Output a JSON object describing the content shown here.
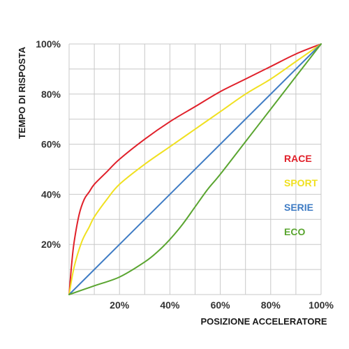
{
  "chart_data": {
    "type": "line",
    "title": "",
    "xlabel": "POSIZIONE ACCELERATORE",
    "ylabel": "TEMPO DI RISPOSTA",
    "xlim": [
      0,
      100
    ],
    "ylim": [
      0,
      100
    ],
    "x_ticks": [
      "20%",
      "40%",
      "60%",
      "80%",
      "100%"
    ],
    "y_ticks": [
      "20%",
      "40%",
      "60%",
      "80%",
      "100%"
    ],
    "grid": true,
    "legend_position": "right",
    "series": [
      {
        "name": "RACE",
        "color": "#e0202a",
        "x": [
          0,
          1,
          2,
          4,
          6,
          8,
          10,
          15,
          20,
          30,
          40,
          50,
          60,
          70,
          80,
          90,
          100
        ],
        "y": [
          0,
          12,
          21,
          32,
          38,
          41,
          44,
          49,
          54,
          62,
          69,
          75,
          81,
          86,
          91,
          96,
          100
        ]
      },
      {
        "name": "SPORT",
        "color": "#f0e020",
        "x": [
          0,
          2,
          5,
          8,
          10,
          15,
          20,
          30,
          40,
          50,
          60,
          70,
          80,
          90,
          100
        ],
        "y": [
          0,
          11,
          21,
          27,
          31,
          38,
          44,
          52,
          59,
          66,
          73,
          80,
          86,
          93,
          100
        ]
      },
      {
        "name": "SERIE",
        "color": "#3f7cc4",
        "x": [
          0,
          100
        ],
        "y": [
          0,
          100
        ]
      },
      {
        "name": "ECO",
        "color": "#5aa530",
        "x": [
          0,
          10,
          20,
          30,
          35,
          40,
          45,
          50,
          55,
          60,
          70,
          80,
          90,
          100
        ],
        "y": [
          0,
          3.5,
          7,
          13,
          17,
          22,
          28,
          35,
          42,
          48,
          61,
          74,
          87,
          100
        ]
      }
    ]
  }
}
